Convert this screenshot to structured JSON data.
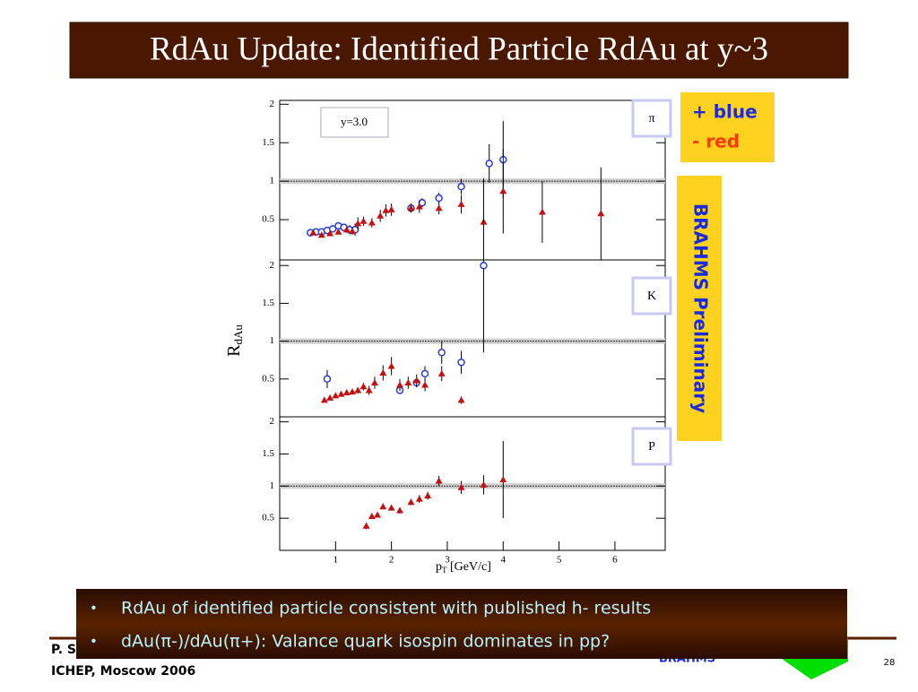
{
  "slide": {
    "title": "RdAu Update: Identified Particle RdAu at y~3",
    "legend_plus": "+ blue",
    "legend_minus": "- red",
    "preliminary": "BRAHMS Preliminary",
    "rapidity": "y=3.0",
    "y_label": "R",
    "y_label_sub": "dAu",
    "x_label": "p",
    "x_label_sub": "T",
    "x_label_unit": " [GeV/c]",
    "bullets": [
      "RdAu of identified particle consistent with published h- results",
      "dAu(π-)/dAu(π+): Valance quark isospin dominates in pp?"
    ],
    "footer_author": "P. S",
    "footer_event": "ICHEP, Moscow 2006",
    "footer_logo": "BRAHMS",
    "page": 28
  },
  "chart_data": [
    {
      "type": "scatter",
      "label": "π",
      "xlim": [
        0,
        6.9
      ],
      "ylim": [
        0,
        2.05
      ],
      "yticks": [
        0.5,
        1,
        1.5,
        2
      ],
      "reference_line": 1,
      "series": [
        {
          "color": "#2a3fd0",
          "marker": "circle",
          "x": [
            0.55,
            0.65,
            0.75,
            0.85,
            0.95,
            1.05,
            1.15,
            1.25,
            1.35,
            2.35,
            2.55,
            2.85,
            3.25,
            3.75,
            4.0
          ],
          "values": [
            0.33,
            0.34,
            0.34,
            0.36,
            0.38,
            0.42,
            0.4,
            0.37,
            0.37,
            0.65,
            0.72,
            0.78,
            0.93,
            1.23,
            1.28
          ],
          "errors": [
            0.02,
            0.02,
            0.02,
            0.03,
            0.03,
            0.04,
            0.04,
            0.06,
            0.08,
            0.05,
            0.06,
            0.07,
            0.1,
            0.25,
            0.5
          ]
        },
        {
          "color": "#c41010",
          "marker": "triangle",
          "x": [
            0.6,
            0.75,
            0.9,
            1.05,
            1.2,
            1.3,
            1.4,
            1.5,
            1.65,
            1.8,
            1.9,
            2.0,
            2.35,
            2.5,
            2.85,
            3.25,
            3.65,
            4.0,
            4.7,
            5.75
          ],
          "values": [
            0.33,
            0.3,
            0.32,
            0.34,
            0.37,
            0.35,
            0.45,
            0.48,
            0.46,
            0.55,
            0.62,
            0.63,
            0.65,
            0.67,
            0.65,
            0.7,
            0.47,
            0.87,
            0.6,
            0.58
          ],
          "errors": [
            0.02,
            0.02,
            0.03,
            0.03,
            0.04,
            0.05,
            0.08,
            0.06,
            0.06,
            0.08,
            0.08,
            0.08,
            0.06,
            0.08,
            0.08,
            0.12,
            0.1,
            0.55,
            0.4,
            0.6
          ]
        }
      ]
    },
    {
      "type": "scatter",
      "label": "K",
      "xlim": [
        0,
        6.9
      ],
      "ylim": [
        0,
        2.05
      ],
      "yticks": [
        0.5,
        1,
        1.5,
        2
      ],
      "reference_line": 1,
      "series": [
        {
          "color": "#2a3fd0",
          "marker": "circle",
          "x": [
            0.85,
            2.15,
            2.45,
            2.6,
            2.9,
            3.25,
            3.65
          ],
          "values": [
            0.5,
            0.35,
            0.45,
            0.57,
            0.85,
            0.72,
            2.0
          ],
          "errors": [
            0.12,
            0.05,
            0.06,
            0.1,
            0.15,
            0.15,
            1.15
          ]
        },
        {
          "color": "#c41010",
          "marker": "triangle",
          "x": [
            0.8,
            0.9,
            1.0,
            1.1,
            1.2,
            1.3,
            1.4,
            1.5,
            1.6,
            1.7,
            1.85,
            2.0,
            2.15,
            2.3,
            2.45,
            2.6,
            2.9,
            3.25
          ],
          "values": [
            0.22,
            0.25,
            0.28,
            0.3,
            0.32,
            0.33,
            0.35,
            0.4,
            0.35,
            0.45,
            0.58,
            0.67,
            0.42,
            0.45,
            0.48,
            0.42,
            0.57,
            0.22
          ],
          "errors": [
            0.02,
            0.02,
            0.02,
            0.03,
            0.03,
            0.03,
            0.04,
            0.05,
            0.06,
            0.08,
            0.1,
            0.12,
            0.08,
            0.08,
            0.08,
            0.08,
            0.1,
            0.05
          ]
        }
      ]
    },
    {
      "type": "scatter",
      "label": "P",
      "xlim": [
        0,
        6.9
      ],
      "ylim": [
        0,
        2.05
      ],
      "yticks": [
        0.5,
        1,
        1.5,
        2
      ],
      "xticks": [
        1,
        2,
        3,
        4,
        5,
        6
      ],
      "reference_line": 1,
      "series": [
        {
          "color": "#c41010",
          "marker": "triangle",
          "x": [
            1.55,
            1.65,
            1.75,
            1.85,
            2.0,
            2.15,
            2.35,
            2.5,
            2.65,
            2.85,
            3.25,
            3.65,
            4.0
          ],
          "values": [
            0.38,
            0.53,
            0.55,
            0.68,
            0.66,
            0.62,
            0.75,
            0.8,
            0.85,
            1.08,
            0.98,
            1.02,
            1.1
          ],
          "errors": [
            0.05,
            0.04,
            0.04,
            0.04,
            0.04,
            0.05,
            0.05,
            0.06,
            0.06,
            0.08,
            0.1,
            0.15,
            0.6
          ]
        }
      ]
    }
  ]
}
